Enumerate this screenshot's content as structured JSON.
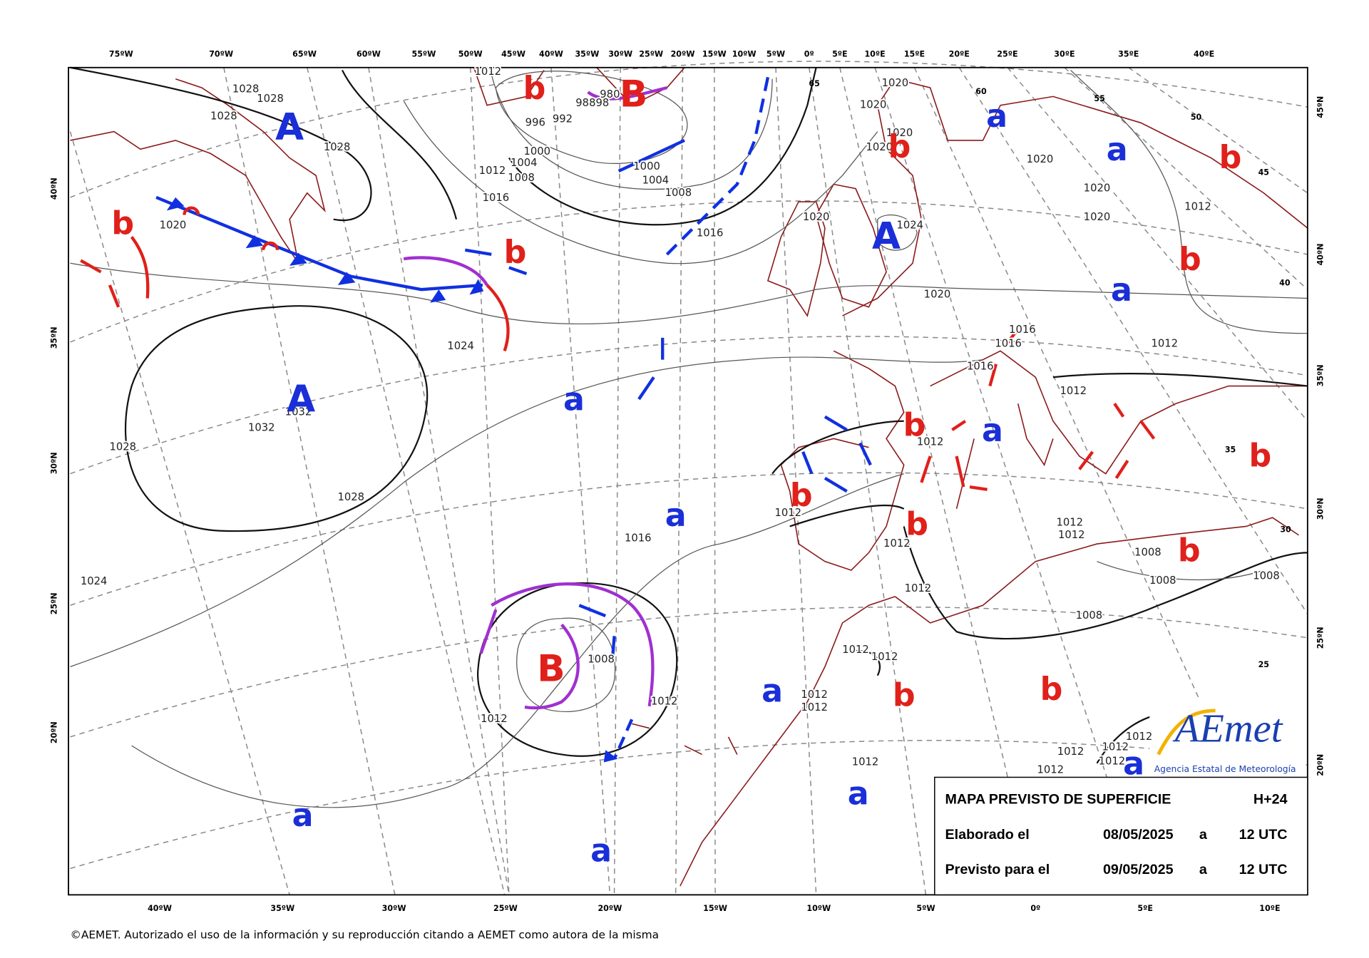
{
  "map": {
    "top_longitudes": [
      "75ºW",
      "70ºW",
      "65ºW",
      "60ºW",
      "55ºW",
      "50ºW",
      "45ºW",
      "40ºW",
      "35ºW",
      "30ºW",
      "25ºW",
      "20ºW",
      "15ºW",
      "10ºW",
      "5ºW",
      "0º",
      "5ºE",
      "10ºE",
      "15ºE",
      "20ºE",
      "25ºE",
      "30ºE",
      "35ºE",
      "40ºE"
    ],
    "bottom_longitudes": [
      "40ºW",
      "35ºW",
      "30ºW",
      "25ºW",
      "20ºW",
      "15ºW",
      "10ºW",
      "5ºW",
      "0º",
      "5ºE",
      "10ºE"
    ],
    "left_latitudes": [
      "40ºN",
      "35ºN",
      "30ºN",
      "25ºN",
      "20ºN"
    ],
    "right_latitudes": [
      "45ºN",
      "40ºN",
      "35ºN",
      "30ºN",
      "25ºN",
      "20ºN"
    ],
    "grid_numbers": [
      "65",
      "60",
      "55",
      "50",
      "45",
      "40",
      "35",
      "30",
      "25"
    ],
    "highs": [
      "A",
      "A",
      "A"
    ],
    "lows": [
      "B",
      "B"
    ],
    "weak_highs": [
      "a",
      "a",
      "a",
      "a",
      "a",
      "a",
      "a",
      "a",
      "a",
      "a",
      "a"
    ],
    "weak_lows": [
      "b",
      "b",
      "b",
      "b",
      "b",
      "b",
      "b",
      "b",
      "b",
      "b",
      "b",
      "b",
      "b"
    ],
    "isobar_labels": [
      "1028",
      "1028",
      "1028",
      "1028",
      "1028",
      "1028",
      "1012",
      "1012",
      "1012",
      "1012",
      "1012",
      "1012",
      "1012",
      "1012",
      "1012",
      "1012",
      "1012",
      "1012",
      "1012",
      "1012",
      "1012",
      "1012",
      "1012",
      "1012",
      "1012",
      "1012",
      "1012",
      "1012",
      "1012",
      "1008",
      "1008",
      "1008",
      "1008",
      "1008",
      "1008",
      "1008",
      "1004",
      "1004",
      "1000",
      "1000",
      "996",
      "992",
      "98898",
      "980",
      "1016",
      "1016",
      "1016",
      "1016",
      "1016",
      "1016",
      "1020",
      "1020",
      "1020",
      "1020",
      "1020",
      "1020",
      "1020",
      "1020",
      "1020",
      "1020",
      "1024",
      "1024",
      "1024",
      "1032",
      "1032"
    ]
  },
  "info": {
    "title": "MAPA PREVISTO DE SUPERFICIE",
    "range": "H+24",
    "made_label": "Elaborado el",
    "made_date": "08/05/2025",
    "made_at": "a",
    "made_time": "12 UTC",
    "valid_label": "Previsto para el",
    "valid_date": "09/05/2025",
    "valid_at": "a",
    "valid_time": "12 UTC"
  },
  "logo": {
    "name": "AEmet",
    "subtitle": "Agencia Estatal de Meteorología"
  },
  "footer": "©AEMET. Autorizado el uso de la información y su reproducción citando a AEMET como autora de la misma"
}
